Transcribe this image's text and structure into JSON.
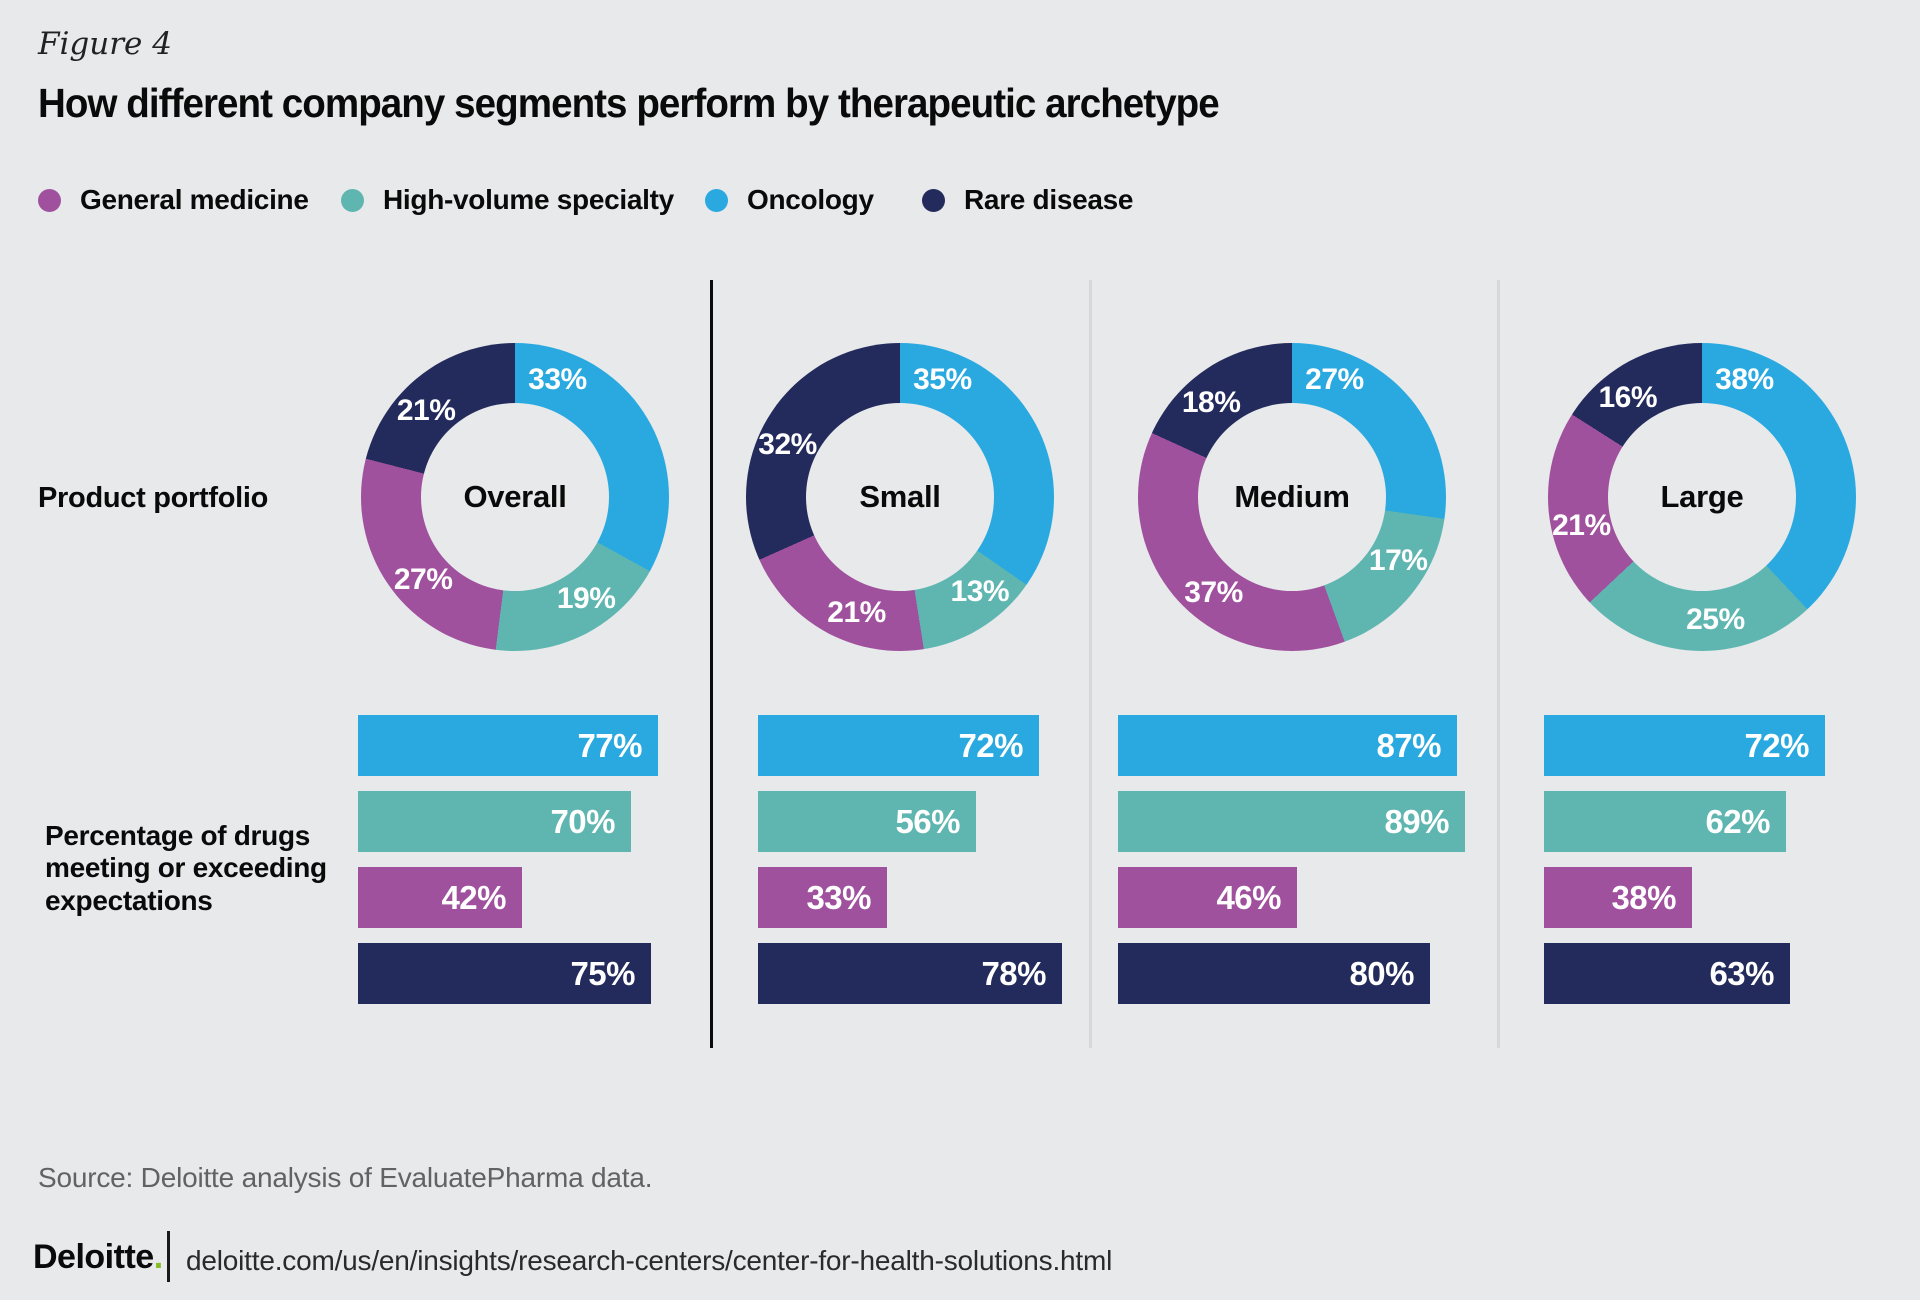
{
  "figure_label": "Figure 4",
  "title": "How different company segments perform by therapeutic archetype",
  "legend": [
    {
      "label": "General medicine",
      "color": "#a0519e"
    },
    {
      "label": "High-volume specialty",
      "color": "#5fb6b1"
    },
    {
      "label": "Oncology",
      "color": "#2aa9e0"
    },
    {
      "label": "Rare disease",
      "color": "#232b5c"
    }
  ],
  "row_labels": {
    "portfolio": "Product portfolio",
    "bars": "Percentage of drugs\nmeeting or exceeding\nexpectations"
  },
  "chart_data": {
    "type": "donut-and-bar",
    "title": "How different company segments perform by therapeutic archetype",
    "categories": [
      "General medicine",
      "High-volume specialty",
      "Oncology",
      "Rare disease"
    ],
    "colors": [
      "#a0519e",
      "#5fb6b1",
      "#2aa9e0",
      "#232b5c"
    ],
    "donut_order": [
      "Oncology",
      "High-volume specialty",
      "General medicine",
      "Rare disease"
    ],
    "bar_order": [
      "Oncology",
      "High-volume specialty",
      "General medicine",
      "Rare disease"
    ],
    "units": "%",
    "donut_metric": "Product portfolio share",
    "bar_metric": "Percentage of drugs meeting or exceeding expectations",
    "bar_axis_max": 100,
    "groups": [
      {
        "label": "Overall",
        "donut": [
          33,
          19,
          27,
          21
        ],
        "bars": [
          77,
          70,
          42,
          75
        ]
      },
      {
        "label": "Small",
        "donut": [
          35,
          13,
          21,
          32
        ],
        "bars": [
          72,
          56,
          33,
          78
        ]
      },
      {
        "label": "Medium",
        "donut": [
          27,
          17,
          37,
          18
        ],
        "bars": [
          87,
          89,
          46,
          80
        ]
      },
      {
        "label": "Large",
        "donut": [
          38,
          25,
          21,
          16
        ],
        "bars": [
          72,
          62,
          38,
          63
        ]
      }
    ]
  },
  "source": "Source: Deloitte analysis of EvaluatePharma data.",
  "footer": {
    "logo": "Deloitte",
    "logo_dot": ".",
    "url": "deloitte.com/us/en/insights/research-centers/center-for-health-solutions.html"
  }
}
